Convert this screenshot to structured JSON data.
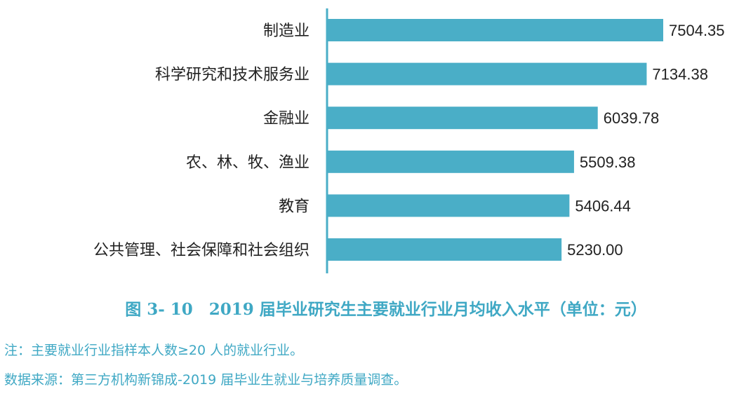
{
  "chart_data": {
    "type": "bar",
    "orientation": "horizontal",
    "title": "图 3- 10　2019 届毕业研究生主要就业行业月均收入水平（单位：元）",
    "categories": [
      "制造业",
      "科学研究和技术服务业",
      "金融业",
      "农、林、牧、渔业",
      "教育",
      "公共管理、社会保障和社会组织"
    ],
    "values": [
      7504.35,
      7134.38,
      6039.78,
      5509.38,
      5406.44,
      5230.0
    ],
    "value_labels": [
      "7504.35",
      "7134.38",
      "6039.78",
      "5509.38",
      "5406.44",
      "5230.00"
    ],
    "xlim": [
      0,
      7504.35
    ],
    "grid": false,
    "legend": "none",
    "bar_color": "#4aaec7",
    "axis_color": "#4aaec7"
  },
  "notes": {
    "note": "注：主要就业行业指样本人数≥20 人的就业行业。",
    "source": "数据来源：第三方机构新锦成-2019 届毕业生就业与培养质量调查。"
  },
  "text_color": "#3fa8c4"
}
